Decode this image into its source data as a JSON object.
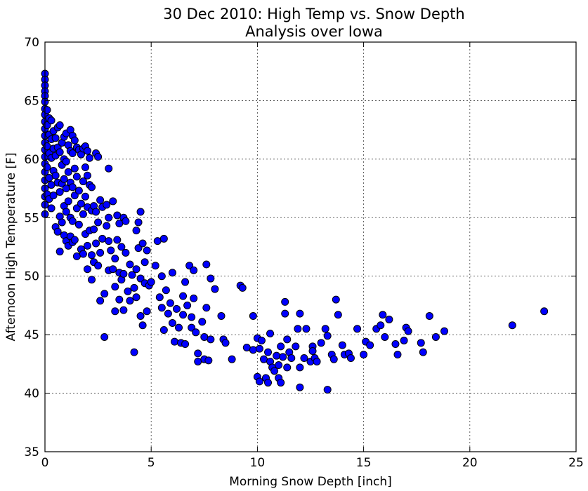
{
  "chart_data": {
    "type": "scatter",
    "title": "30 Dec 2010: High Temp vs. Snow Depth",
    "subtitle": "Analysis over Iowa",
    "xlabel": "Morning Snow Depth [inch]",
    "ylabel": "Afternoon High Temperature [F]",
    "xlim": [
      0,
      25
    ],
    "ylim": [
      35,
      70
    ],
    "xticks": [
      0,
      5,
      10,
      15,
      20,
      25
    ],
    "yticks": [
      35,
      40,
      45,
      50,
      55,
      60,
      65,
      70
    ],
    "grid": true,
    "marker_color": "#0000ff",
    "marker_edge": "#000000",
    "points": [
      [
        0.0,
        67.3
      ],
      [
        0.0,
        66.8
      ],
      [
        0.0,
        66.3
      ],
      [
        0.0,
        65.8
      ],
      [
        0.0,
        65.4
      ],
      [
        0.0,
        64.9
      ],
      [
        0.0,
        64.3
      ],
      [
        0.0,
        63.8
      ],
      [
        0.0,
        63.2
      ],
      [
        0.0,
        62.6
      ],
      [
        0.0,
        62.0
      ],
      [
        0.0,
        61.4
      ],
      [
        0.0,
        60.8
      ],
      [
        0.0,
        60.2
      ],
      [
        0.0,
        59.6
      ],
      [
        0.0,
        58.9
      ],
      [
        0.0,
        58.2
      ],
      [
        0.0,
        57.5
      ],
      [
        0.0,
        56.8
      ],
      [
        0.0,
        56.1
      ],
      [
        0.0,
        55.3
      ],
      [
        0.1,
        64.2
      ],
      [
        0.1,
        62.9
      ],
      [
        0.1,
        61.1
      ],
      [
        0.1,
        59.3
      ],
      [
        0.1,
        57.0
      ],
      [
        0.2,
        63.5
      ],
      [
        0.2,
        62.1
      ],
      [
        0.2,
        60.5
      ],
      [
        0.2,
        58.4
      ],
      [
        0.2,
        56.6
      ],
      [
        0.3,
        63.3
      ],
      [
        0.3,
        61.7
      ],
      [
        0.3,
        60.1
      ],
      [
        0.3,
        57.8
      ],
      [
        0.3,
        55.8
      ],
      [
        0.4,
        62.4
      ],
      [
        0.4,
        60.9
      ],
      [
        0.4,
        59.0
      ],
      [
        0.4,
        56.9
      ],
      [
        0.5,
        61.8
      ],
      [
        0.5,
        60.3
      ],
      [
        0.5,
        58.6
      ],
      [
        0.5,
        54.2
      ],
      [
        0.6,
        62.7
      ],
      [
        0.6,
        61.0
      ],
      [
        0.6,
        58.0
      ],
      [
        0.6,
        53.8
      ],
      [
        0.7,
        62.9
      ],
      [
        0.7,
        60.6
      ],
      [
        0.7,
        57.2
      ],
      [
        0.7,
        55.1
      ],
      [
        0.7,
        52.1
      ],
      [
        0.8,
        61.4
      ],
      [
        0.8,
        59.5
      ],
      [
        0.8,
        57.9
      ],
      [
        0.8,
        54.6
      ],
      [
        0.9,
        61.9
      ],
      [
        0.9,
        60.0
      ],
      [
        0.9,
        58.3
      ],
      [
        0.9,
        56.0
      ],
      [
        0.9,
        53.5
      ],
      [
        1.0,
        62.2
      ],
      [
        1.0,
        59.8
      ],
      [
        1.0,
        57.5
      ],
      [
        1.0,
        55.5
      ],
      [
        1.0,
        53.0
      ],
      [
        1.1,
        61.2
      ],
      [
        1.1,
        58.9
      ],
      [
        1.1,
        56.4
      ],
      [
        1.1,
        52.6
      ],
      [
        1.2,
        62.5
      ],
      [
        1.2,
        60.7
      ],
      [
        1.2,
        58.0
      ],
      [
        1.2,
        55.0
      ],
      [
        1.2,
        53.4
      ],
      [
        1.3,
        62.0
      ],
      [
        1.3,
        60.5
      ],
      [
        1.3,
        57.6
      ],
      [
        1.3,
        54.7
      ],
      [
        1.3,
        52.9
      ],
      [
        1.4,
        61.6
      ],
      [
        1.4,
        59.2
      ],
      [
        1.4,
        56.9
      ],
      [
        1.4,
        53.1
      ],
      [
        1.5,
        61.0
      ],
      [
        1.5,
        58.5
      ],
      [
        1.5,
        55.8
      ],
      [
        1.5,
        51.7
      ],
      [
        1.6,
        60.8
      ],
      [
        1.6,
        57.3
      ],
      [
        1.6,
        54.4
      ],
      [
        1.7,
        60.4
      ],
      [
        1.7,
        56.2
      ],
      [
        1.7,
        52.3
      ],
      [
        1.8,
        60.9
      ],
      [
        1.8,
        58.1
      ],
      [
        1.8,
        55.3
      ],
      [
        1.8,
        51.9
      ],
      [
        1.9,
        61.1
      ],
      [
        1.9,
        59.3
      ],
      [
        1.9,
        56.8
      ],
      [
        1.9,
        53.6
      ],
      [
        2.0,
        60.7
      ],
      [
        2.0,
        58.6
      ],
      [
        2.0,
        55.9
      ],
      [
        2.0,
        52.6
      ],
      [
        2.0,
        50.6
      ],
      [
        2.1,
        60.1
      ],
      [
        2.1,
        57.8
      ],
      [
        2.1,
        53.9
      ],
      [
        2.2,
        57.6
      ],
      [
        2.2,
        55.6
      ],
      [
        2.2,
        51.8
      ],
      [
        2.2,
        49.7
      ],
      [
        2.3,
        56.0
      ],
      [
        2.3,
        54.0
      ],
      [
        2.3,
        51.2
      ],
      [
        2.4,
        60.5
      ],
      [
        2.4,
        55.5
      ],
      [
        2.4,
        52.8
      ],
      [
        2.5,
        60.2
      ],
      [
        2.5,
        54.6
      ],
      [
        2.5,
        50.9
      ],
      [
        2.6,
        56.5
      ],
      [
        2.6,
        52.0
      ],
      [
        2.6,
        47.9
      ],
      [
        2.7,
        55.9
      ],
      [
        2.7,
        53.2
      ],
      [
        2.8,
        48.5
      ],
      [
        2.8,
        44.8
      ],
      [
        2.9,
        56.1
      ],
      [
        2.9,
        54.3
      ],
      [
        3.0,
        59.2
      ],
      [
        3.0,
        55.0
      ],
      [
        3.0,
        53.0
      ],
      [
        3.0,
        50.5
      ],
      [
        3.1,
        52.2
      ],
      [
        3.2,
        56.4
      ],
      [
        3.2,
        50.6
      ],
      [
        3.3,
        51.5
      ],
      [
        3.3,
        49.1
      ],
      [
        3.3,
        47.0
      ],
      [
        3.4,
        55.2
      ],
      [
        3.4,
        53.1
      ],
      [
        3.5,
        54.5
      ],
      [
        3.5,
        50.3
      ],
      [
        3.5,
        48.0
      ],
      [
        3.6,
        52.5
      ],
      [
        3.6,
        49.7
      ],
      [
        3.7,
        55.0
      ],
      [
        3.7,
        50.2
      ],
      [
        3.7,
        47.1
      ],
      [
        3.8,
        54.7
      ],
      [
        3.8,
        52.0
      ],
      [
        3.9,
        48.7
      ],
      [
        4.0,
        51.0
      ],
      [
        4.0,
        47.9
      ],
      [
        4.1,
        50.1
      ],
      [
        4.2,
        49.0
      ],
      [
        4.2,
        43.5
      ],
      [
        4.3,
        53.9
      ],
      [
        4.3,
        50.6
      ],
      [
        4.3,
        48.2
      ],
      [
        4.4,
        54.6
      ],
      [
        4.4,
        52.4
      ],
      [
        4.5,
        55.5
      ],
      [
        4.5,
        49.8
      ],
      [
        4.5,
        46.6
      ],
      [
        4.6,
        52.8
      ],
      [
        4.6,
        45.8
      ],
      [
        4.7,
        51.2
      ],
      [
        4.7,
        49.4
      ],
      [
        4.8,
        52.2
      ],
      [
        4.8,
        47.0
      ],
      [
        4.9,
        49.2
      ],
      [
        5.0,
        49.5
      ],
      [
        5.2,
        50.9
      ],
      [
        5.3,
        53.0
      ],
      [
        5.4,
        48.2
      ],
      [
        5.5,
        50.0
      ],
      [
        5.5,
        47.3
      ],
      [
        5.6,
        53.2
      ],
      [
        5.6,
        45.4
      ],
      [
        5.7,
        48.8
      ],
      [
        5.8,
        46.8
      ],
      [
        5.9,
        47.7
      ],
      [
        6.0,
        50.3
      ],
      [
        6.0,
        46.0
      ],
      [
        6.1,
        44.4
      ],
      [
        6.2,
        47.2
      ],
      [
        6.3,
        45.6
      ],
      [
        6.4,
        44.3
      ],
      [
        6.5,
        48.3
      ],
      [
        6.5,
        46.7
      ],
      [
        6.6,
        49.5
      ],
      [
        6.6,
        44.2
      ],
      [
        6.7,
        47.5
      ],
      [
        6.8,
        50.9
      ],
      [
        6.9,
        46.5
      ],
      [
        6.9,
        45.6
      ],
      [
        7.0,
        50.5
      ],
      [
        7.0,
        48.1
      ],
      [
        7.1,
        45.2
      ],
      [
        7.2,
        43.4
      ],
      [
        7.2,
        42.7
      ],
      [
        7.4,
        46.1
      ],
      [
        7.5,
        44.8
      ],
      [
        7.5,
        42.9
      ],
      [
        7.6,
        51.0
      ],
      [
        7.6,
        47.3
      ],
      [
        7.7,
        42.8
      ],
      [
        7.8,
        49.8
      ],
      [
        7.8,
        44.6
      ],
      [
        8.0,
        48.9
      ],
      [
        8.3,
        46.6
      ],
      [
        8.4,
        44.6
      ],
      [
        8.5,
        44.3
      ],
      [
        8.8,
        42.9
      ],
      [
        9.2,
        49.2
      ],
      [
        9.3,
        49.0
      ],
      [
        9.5,
        43.9
      ],
      [
        9.8,
        46.6
      ],
      [
        9.8,
        43.7
      ],
      [
        10.0,
        44.7
      ],
      [
        10.0,
        41.4
      ],
      [
        10.1,
        43.8
      ],
      [
        10.1,
        41.0
      ],
      [
        10.2,
        44.5
      ],
      [
        10.3,
        42.9
      ],
      [
        10.4,
        41.3
      ],
      [
        10.5,
        43.5
      ],
      [
        10.5,
        40.9
      ],
      [
        10.6,
        45.1
      ],
      [
        10.6,
        42.7
      ],
      [
        10.7,
        42.2
      ],
      [
        10.8,
        41.9
      ],
      [
        10.9,
        43.2
      ],
      [
        11.0,
        42.4
      ],
      [
        11.0,
        41.3
      ],
      [
        11.1,
        44.0
      ],
      [
        11.1,
        40.9
      ],
      [
        11.2,
        43.1
      ],
      [
        11.3,
        47.8
      ],
      [
        11.3,
        46.8
      ],
      [
        11.4,
        44.6
      ],
      [
        11.4,
        42.2
      ],
      [
        11.5,
        43.5
      ],
      [
        11.6,
        43.0
      ],
      [
        11.8,
        44.0
      ],
      [
        11.9,
        45.5
      ],
      [
        12.0,
        46.8
      ],
      [
        12.0,
        42.2
      ],
      [
        12.0,
        40.5
      ],
      [
        12.2,
        43.0
      ],
      [
        12.3,
        45.5
      ],
      [
        12.5,
        42.7
      ],
      [
        12.6,
        44.0
      ],
      [
        12.6,
        43.6
      ],
      [
        12.7,
        43.0
      ],
      [
        12.8,
        42.7
      ],
      [
        13.0,
        44.3
      ],
      [
        13.2,
        45.5
      ],
      [
        13.3,
        44.9
      ],
      [
        13.3,
        40.3
      ],
      [
        13.5,
        43.3
      ],
      [
        13.6,
        42.9
      ],
      [
        13.7,
        48.0
      ],
      [
        13.8,
        46.7
      ],
      [
        14.0,
        44.1
      ],
      [
        14.1,
        43.3
      ],
      [
        14.3,
        43.4
      ],
      [
        14.4,
        43.0
      ],
      [
        14.7,
        45.5
      ],
      [
        15.0,
        43.3
      ],
      [
        15.1,
        44.4
      ],
      [
        15.3,
        44.1
      ],
      [
        15.6,
        45.5
      ],
      [
        15.8,
        45.8
      ],
      [
        15.9,
        46.7
      ],
      [
        16.0,
        44.8
      ],
      [
        16.2,
        46.3
      ],
      [
        16.5,
        44.2
      ],
      [
        16.6,
        43.3
      ],
      [
        16.9,
        44.5
      ],
      [
        17.0,
        45.6
      ],
      [
        17.1,
        45.3
      ],
      [
        17.7,
        44.3
      ],
      [
        17.8,
        43.5
      ],
      [
        18.1,
        46.6
      ],
      [
        18.4,
        44.8
      ],
      [
        18.8,
        45.3
      ],
      [
        22.0,
        45.8
      ],
      [
        23.5,
        47.0
      ]
    ]
  }
}
